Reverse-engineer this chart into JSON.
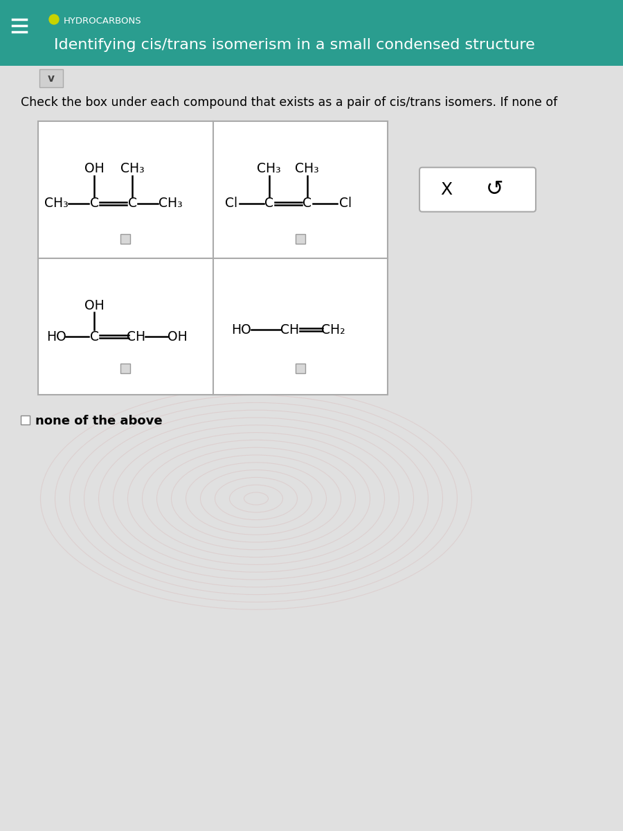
{
  "header_bg_color": "#2a9d8f",
  "header_text_color": "#ffffff",
  "header_label": "HYDROCARBONS",
  "header_subtitle": "Identifying cis/trans isomerism in a small condensed structure",
  "circle_color": "#c8d400",
  "body_bg_color": "#e0e0e0",
  "question_text": "Check the box under each compound that exists as a pair of cis/trans isomers. If none of",
  "grid_line_color": "#aaaaaa",
  "none_above_text": "none of the above",
  "x_symbol": "X",
  "undo_symbol": "↺",
  "fig_width": 9.0,
  "fig_height": 12.0
}
